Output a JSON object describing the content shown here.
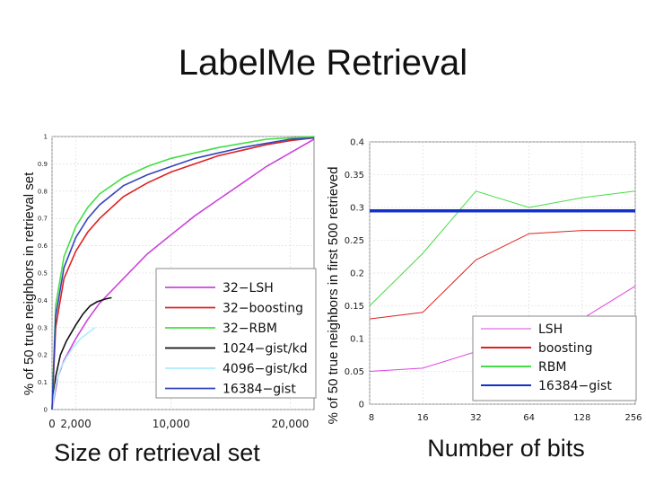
{
  "title": "LabelMe Retrieval",
  "chart_data": [
    {
      "type": "line",
      "xlabel": "Size of retrieval set",
      "ylabel": "% of 50 true neighbors in retrieval set",
      "xlim": [
        0,
        22000
      ],
      "ylim": [
        0,
        1
      ],
      "x_tick_labels": [
        "0",
        "2,000",
        "10,000",
        "20,000"
      ],
      "x_ticks": [
        0,
        2000,
        10000,
        20000
      ],
      "y_ticks": [
        0,
        0.1,
        0.2,
        0.3,
        0.4,
        0.5,
        0.6,
        0.7,
        0.8,
        0.9,
        1
      ],
      "y_tick_labels": [
        "0",
        "0.1",
        "0.2",
        "0.3",
        "0.4",
        "0.5",
        "0.6",
        "0.7",
        "0.8",
        "0.9",
        "1"
      ],
      "grid": true,
      "legend_position": "bottom-right",
      "series": [
        {
          "name": "32−LSH",
          "color": "#cc44dd",
          "x": [
            0,
            500,
            1000,
            2000,
            3000,
            4000,
            6000,
            8000,
            10000,
            12000,
            14000,
            16000,
            18000,
            20000,
            22000
          ],
          "y": [
            0,
            0.12,
            0.18,
            0.26,
            0.33,
            0.39,
            0.48,
            0.57,
            0.64,
            0.71,
            0.77,
            0.83,
            0.89,
            0.94,
            0.99
          ]
        },
        {
          "name": "32−boosting",
          "color": "#dd2222",
          "x": [
            0,
            300,
            1000,
            2000,
            3000,
            4000,
            6000,
            8000,
            10000,
            12000,
            14000,
            16000,
            18000,
            20000,
            22000
          ],
          "y": [
            0,
            0.3,
            0.48,
            0.58,
            0.65,
            0.7,
            0.78,
            0.83,
            0.87,
            0.9,
            0.93,
            0.95,
            0.97,
            0.985,
            0.995
          ]
        },
        {
          "name": "32−RBM",
          "color": "#44dd44",
          "x": [
            0,
            300,
            1000,
            2000,
            3000,
            4000,
            6000,
            8000,
            10000,
            12000,
            14000,
            16000,
            18000,
            20000,
            22000
          ],
          "y": [
            0,
            0.38,
            0.56,
            0.67,
            0.74,
            0.79,
            0.85,
            0.89,
            0.92,
            0.94,
            0.96,
            0.975,
            0.99,
            0.995,
            1.0
          ]
        },
        {
          "name": "1024−gist/kd",
          "color": "#111111",
          "x": [
            0,
            300,
            700,
            1200,
            2000,
            2600,
            3200,
            3800,
            4500,
            5000
          ],
          "y": [
            0,
            0.12,
            0.2,
            0.25,
            0.31,
            0.35,
            0.38,
            0.395,
            0.405,
            0.41
          ]
        },
        {
          "name": "4096−gist/kd",
          "color": "#aaeeff",
          "x": [
            0,
            300,
            700,
            1200,
            1800,
            2400,
            3000,
            3600
          ],
          "y": [
            0,
            0.09,
            0.15,
            0.19,
            0.23,
            0.26,
            0.28,
            0.3
          ]
        },
        {
          "name": "16384−gist",
          "color": "#3344bb",
          "x": [
            0,
            300,
            1000,
            2000,
            3000,
            4000,
            6000,
            8000,
            10000,
            12000,
            14000,
            16000,
            18000,
            20000,
            22000
          ],
          "y": [
            0,
            0.34,
            0.52,
            0.63,
            0.7,
            0.75,
            0.82,
            0.86,
            0.89,
            0.92,
            0.94,
            0.96,
            0.975,
            0.99,
            0.995
          ]
        }
      ]
    },
    {
      "type": "line",
      "xlabel": "Number of bits",
      "ylabel": "% of 50 true neighbors in first 500 retrieved",
      "x_ticks": [
        8,
        16,
        32,
        64,
        128,
        256
      ],
      "x_tick_labels": [
        "8",
        "16",
        "32",
        "64",
        "128",
        "256"
      ],
      "ylim": [
        0,
        0.4
      ],
      "y_ticks": [
        0,
        0.05,
        0.1,
        0.15,
        0.2,
        0.25,
        0.3,
        0.35,
        0.4
      ],
      "y_tick_labels": [
        "0",
        "0.05",
        "0.1",
        "0.15",
        "0.2",
        "0.25",
        "0.3",
        "0.35",
        "0.4"
      ],
      "grid": true,
      "legend_position": "bottom-right",
      "series": [
        {
          "name": "LSH",
          "color": "#dd44dd",
          "x": [
            8,
            16,
            32,
            64,
            128,
            256
          ],
          "y": [
            0.05,
            0.055,
            0.08,
            0.1,
            0.13,
            0.18
          ]
        },
        {
          "name": "boosting",
          "color": "#dd2222",
          "x": [
            8,
            16,
            32,
            64,
            128,
            256
          ],
          "y": [
            0.13,
            0.14,
            0.22,
            0.26,
            0.265,
            0.265
          ]
        },
        {
          "name": "RBM",
          "color": "#44dd44",
          "x": [
            8,
            16,
            32,
            64,
            128,
            256
          ],
          "y": [
            0.15,
            0.23,
            0.325,
            0.3,
            0.315,
            0.325
          ]
        },
        {
          "name": "16384−gist",
          "color": "#1133cc",
          "x": [
            8,
            256
          ],
          "y": [
            0.295,
            0.295
          ]
        }
      ]
    }
  ]
}
